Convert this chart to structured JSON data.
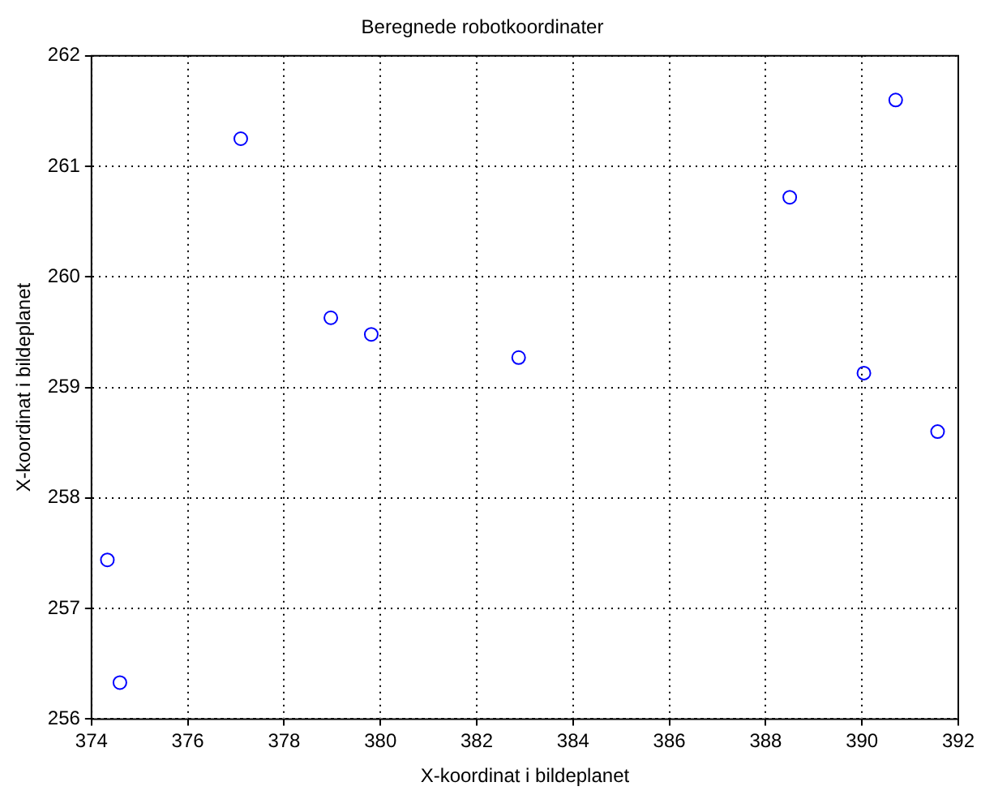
{
  "chart_data": {
    "type": "scatter",
    "title": "Beregnede robotkoordinater",
    "xlabel": "X-koordinat i bildeplanet",
    "ylabel": "X-koordinat i bildeplanet",
    "x": [
      374.33,
      374.59,
      377.1,
      378.97,
      379.81,
      382.87,
      388.5,
      390.04,
      390.7,
      391.57
    ],
    "series": [
      {
        "color": "#0000ff",
        "values": [
          257.44,
          256.33,
          261.25,
          259.63,
          259.48,
          259.27,
          260.72,
          259.13,
          261.6,
          258.6
        ]
      }
    ],
    "xlim": [
      374,
      392
    ],
    "xticks": [
      374,
      376,
      378,
      380,
      382,
      384,
      386,
      388,
      390,
      392
    ],
    "ylim": [
      256,
      262
    ],
    "yticks": [
      256,
      257,
      258,
      259,
      260,
      261,
      262
    ],
    "grid": true,
    "legend": false,
    "marker": "circle"
  }
}
